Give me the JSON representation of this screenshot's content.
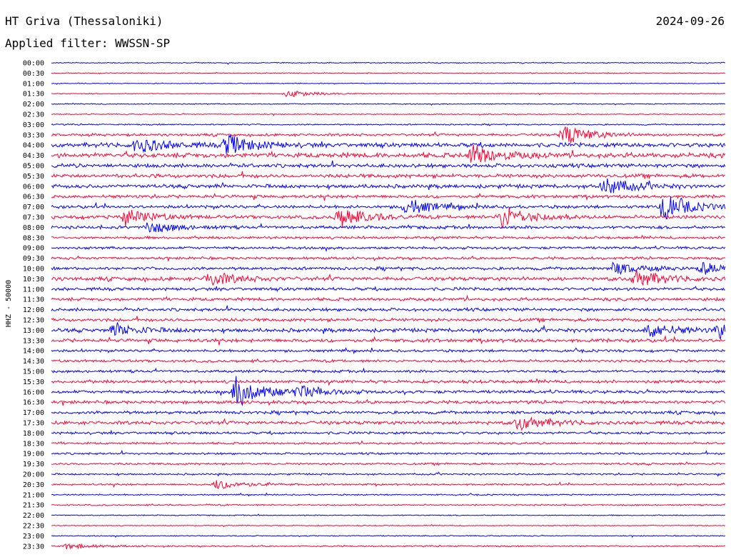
{
  "header": {
    "station": "HT Griva (Thessaloniki)",
    "filter": "Applied filter: WWSSN-SP",
    "date": "2024-09-26"
  },
  "chart_data": {
    "type": "line",
    "title": "HT Griva (Thessaloniki)",
    "ylabel": "HHZ - 50000",
    "colors": [
      "#0000ff",
      "#ff0033"
    ],
    "rows": [
      "00:00",
      "00:30",
      "01:00",
      "01:30",
      "02:00",
      "02:30",
      "03:00",
      "03:30",
      "04:00",
      "04:30",
      "05:00",
      "05:30",
      "06:00",
      "06:30",
      "07:00",
      "07:30",
      "08:00",
      "08:30",
      "09:00",
      "09:30",
      "10:00",
      "10:30",
      "11:00",
      "11:30",
      "12:00",
      "12:30",
      "13:00",
      "13:30",
      "14:00",
      "14:30",
      "15:00",
      "15:30",
      "16:00",
      "16:30",
      "17:00",
      "17:30",
      "18:00",
      "18:30",
      "19:00",
      "19:30",
      "20:00",
      "20:30",
      "21:00",
      "21:30",
      "22:00",
      "22:30",
      "23:00",
      "23:30"
    ],
    "minutes_per_row": 30,
    "noise_level": [
      0.6,
      0.5,
      0.5,
      0.5,
      0.6,
      0.6,
      0.8,
      1.5,
      2.5,
      2.8,
      2.2,
      2.2,
      2.2,
      1.8,
      1.8,
      2.0,
      1.8,
      1.5,
      1.5,
      1.5,
      1.8,
      2.2,
      1.8,
      1.8,
      1.8,
      1.8,
      2.2,
      2.0,
      1.5,
      1.5,
      1.5,
      1.8,
      1.8,
      1.8,
      1.8,
      2.0,
      1.5,
      1.2,
      1.2,
      1.2,
      1.0,
      1.0,
      0.8,
      0.8,
      0.6,
      0.6,
      0.6,
      0.8
    ],
    "events": [
      {
        "row": 3,
        "minute": 10.5,
        "amp": 5
      },
      {
        "row": 7,
        "minute": 22.8,
        "amp": 14
      },
      {
        "row": 8,
        "minute": 3.8,
        "amp": 11
      },
      {
        "row": 8,
        "minute": 7.8,
        "amp": 14
      },
      {
        "row": 9,
        "minute": 18.7,
        "amp": 14
      },
      {
        "row": 12,
        "minute": 24.6,
        "amp": 12
      },
      {
        "row": 14,
        "minute": 15.8,
        "amp": 11
      },
      {
        "row": 14,
        "minute": 27.2,
        "amp": 18
      },
      {
        "row": 15,
        "minute": 3.3,
        "amp": 11
      },
      {
        "row": 15,
        "minute": 12.8,
        "amp": 14
      },
      {
        "row": 15,
        "minute": 20.0,
        "amp": 16
      },
      {
        "row": 16,
        "minute": 4.3,
        "amp": 8
      },
      {
        "row": 20,
        "minute": 25.0,
        "amp": 8
      },
      {
        "row": 20,
        "minute": 29.0,
        "amp": 8
      },
      {
        "row": 21,
        "minute": 7.0,
        "amp": 10
      },
      {
        "row": 21,
        "minute": 26.0,
        "amp": 12
      },
      {
        "row": 26,
        "minute": 2.8,
        "amp": 8
      },
      {
        "row": 26,
        "minute": 26.6,
        "amp": 10
      },
      {
        "row": 26,
        "minute": 29.7,
        "amp": 10
      },
      {
        "row": 32,
        "minute": 8.2,
        "amp": 22
      },
      {
        "row": 32,
        "minute": 11.0,
        "amp": 8
      },
      {
        "row": 35,
        "minute": 20.8,
        "amp": 10
      },
      {
        "row": 41,
        "minute": 7.3,
        "amp": 7
      },
      {
        "row": 47,
        "minute": 0.7,
        "amp": 4
      }
    ]
  }
}
